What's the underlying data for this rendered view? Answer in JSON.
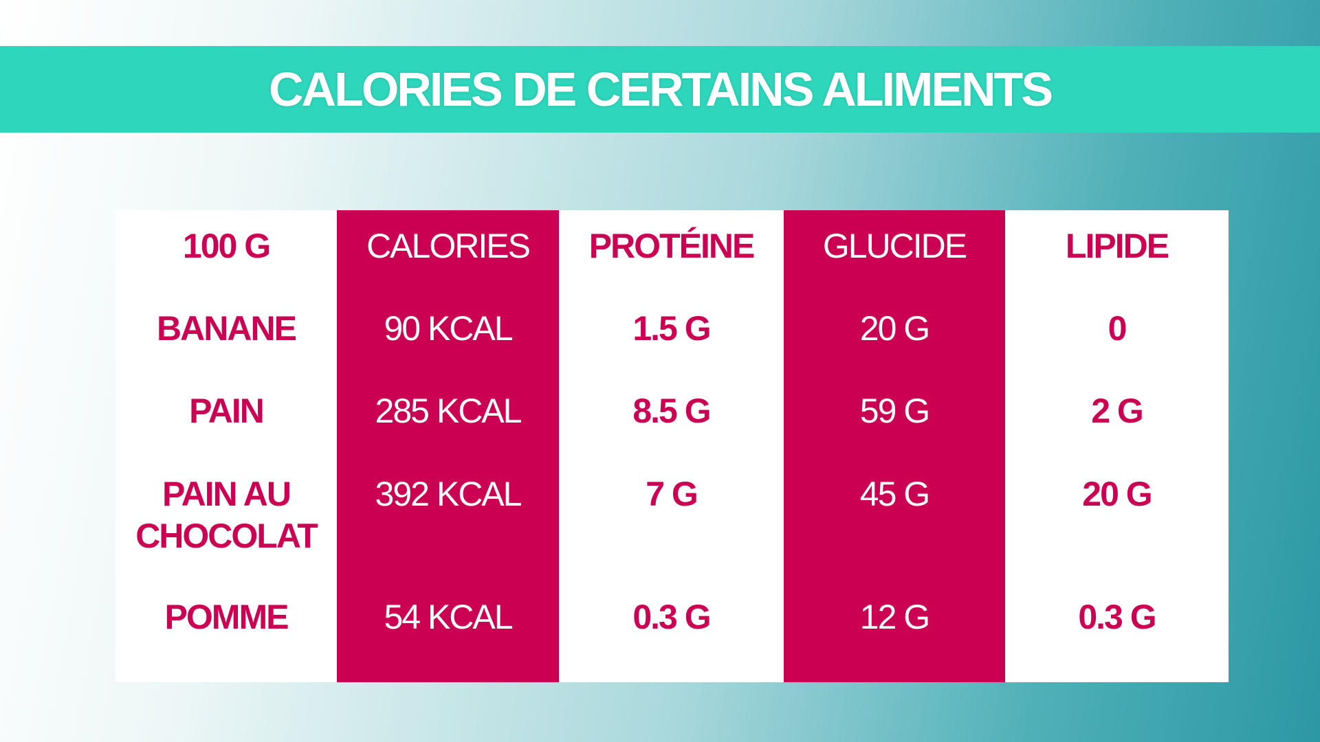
{
  "title": "CALORIES DE CERTAINS ALIMENTS",
  "table": {
    "header": [
      "100 G",
      "CALORIES",
      "PROTÉINE",
      "GLUCIDE",
      "LIPIDE"
    ],
    "rows": [
      [
        "BANANE",
        "90 KCAL",
        "1.5 G",
        "20 G",
        "0"
      ],
      [
        "PAIN",
        "285 KCAL",
        "8.5 G",
        "59 G",
        "2 G"
      ],
      [
        "PAIN AU CHOCOLAT",
        "392 KCAL",
        "7 G",
        "45 G",
        "20 G"
      ],
      [
        "POMME",
        "54 KCAL",
        "0.3 G",
        "12 G",
        "0.3 G"
      ]
    ]
  }
}
